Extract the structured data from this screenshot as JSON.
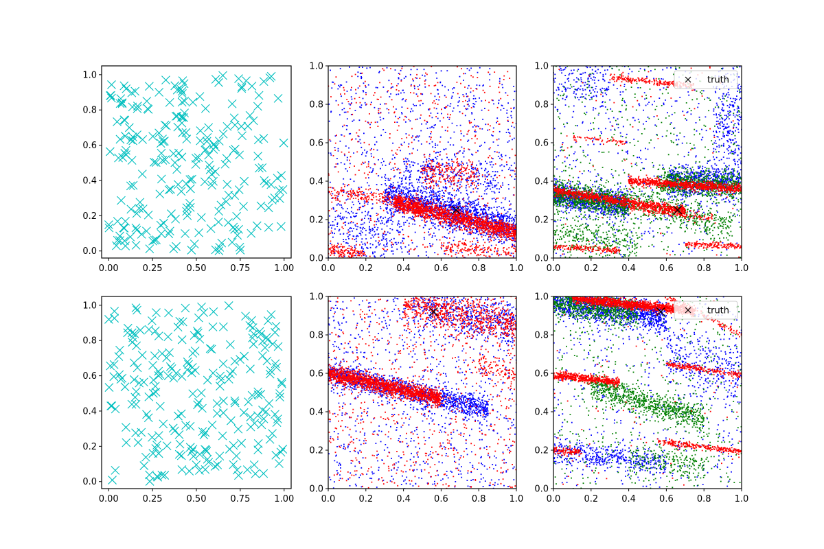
{
  "figure": {
    "layout": "2 rows x 3 columns of scatter plots",
    "colors": {
      "samples": "#00bfbf",
      "red": "#ff0000",
      "blue": "#0000ff",
      "green": "#008000",
      "truth": "#000000"
    }
  },
  "chart_data": [
    {
      "panel": "row1-col1",
      "type": "scatter",
      "title": "",
      "xlabel": "",
      "ylabel": "",
      "xlim": [
        -0.04,
        1.04
      ],
      "ylim": [
        -0.04,
        1.05
      ],
      "xticks": [
        "0.00",
        "0.25",
        "0.50",
        "0.75",
        "1.00"
      ],
      "yticks": [
        "0.0",
        "0.2",
        "0.4",
        "0.6",
        "0.8",
        "1.0"
      ],
      "grid": false,
      "series": [
        {
          "marker": "x",
          "color": "#00bfbf",
          "distribution": {
            "kind": "uniform",
            "n": 240,
            "seed": 11
          }
        }
      ]
    },
    {
      "panel": "row1-col2",
      "type": "scatter",
      "title": "",
      "xlabel": "",
      "ylabel": "",
      "xlim": [
        0,
        1
      ],
      "ylim": [
        0,
        1
      ],
      "xticks": [
        "0.0",
        "0.2",
        "0.4",
        "0.6",
        "0.8",
        "1.0"
      ],
      "yticks": [
        "0.0",
        "0.2",
        "0.4",
        "0.6",
        "0.8",
        "1.0"
      ],
      "grid": false,
      "truth": {
        "x": 0.68,
        "y": 0.25,
        "marker": "x",
        "color": "#000000"
      },
      "series": [
        {
          "color": "#0000ff",
          "seed": 21,
          "background": 900,
          "bands": [
            {
              "x0": 0.3,
              "x1": 1.0,
              "y_at_0": 0.42,
              "slope": -0.27,
              "spread": 0.045,
              "n": 1500
            },
            {
              "x0": 0.0,
              "x1": 0.4,
              "y_at_0": 0.18,
              "slope": -0.2,
              "spread": 0.09,
              "n": 250
            },
            {
              "x0": 0.4,
              "x1": 0.9,
              "y_at_0": 0.52,
              "slope": -0.12,
              "spread": 0.05,
              "n": 250
            }
          ]
        },
        {
          "color": "#ff0000",
          "seed": 22,
          "background": 500,
          "bands": [
            {
              "x0": 0.35,
              "x1": 1.0,
              "y_at_0": 0.38,
              "slope": -0.25,
              "spread": 0.022,
              "n": 1500
            },
            {
              "x0": 0.0,
              "x1": 0.5,
              "y_at_0": 0.35,
              "slope": -0.15,
              "spread": 0.02,
              "n": 200
            },
            {
              "x0": 0.0,
              "x1": 0.2,
              "y_at_0": 0.04,
              "slope": -0.1,
              "spread": 0.02,
              "n": 150
            },
            {
              "x0": 0.6,
              "x1": 1.0,
              "y_at_0": 0.1,
              "slope": -0.07,
              "spread": 0.02,
              "n": 150
            },
            {
              "x0": 0.5,
              "x1": 0.8,
              "y_at_0": 0.47,
              "slope": -0.05,
              "spread": 0.04,
              "n": 200
            }
          ]
        }
      ]
    },
    {
      "panel": "row1-col3",
      "type": "scatter",
      "title": "",
      "xlabel": "",
      "ylabel": "",
      "xlim": [
        0,
        1
      ],
      "ylim": [
        0,
        1
      ],
      "xticks": [
        "0.0",
        "0.2",
        "0.4",
        "0.6",
        "0.8",
        "1.0"
      ],
      "yticks": [
        "0.0",
        "0.2",
        "0.4",
        "0.6",
        "0.8",
        "1.0"
      ],
      "grid": false,
      "legend": {
        "label": "truth",
        "placement": "upper right"
      },
      "truth": {
        "x": 0.66,
        "y": 0.25,
        "marker": "x",
        "color": "#000000"
      },
      "series": [
        {
          "color": "#0000ff",
          "seed": 31,
          "background": 500,
          "bands": [
            {
              "x0": 0.0,
              "x1": 0.4,
              "y_at_0": 0.33,
              "slope": -0.15,
              "spread": 0.035,
              "n": 900
            },
            {
              "x0": 0.6,
              "x1": 1.0,
              "y_at_0": 0.37,
              "slope": 0.03,
              "spread": 0.04,
              "n": 700
            },
            {
              "x0": 0.85,
              "x1": 1.0,
              "y_at_0": 0.75,
              "slope": 0.0,
              "spread": 0.15,
              "n": 250
            },
            {
              "x0": 0.0,
              "x1": 0.3,
              "y_at_0": 0.9,
              "slope": 0.0,
              "spread": 0.06,
              "n": 150
            }
          ]
        },
        {
          "color": "#008000",
          "seed": 32,
          "background": 500,
          "bands": [
            {
              "x0": 0.0,
              "x1": 0.4,
              "y_at_0": 0.33,
              "slope": -0.12,
              "spread": 0.035,
              "n": 800
            },
            {
              "x0": 0.55,
              "x1": 1.0,
              "y_at_0": 0.41,
              "slope": -0.03,
              "spread": 0.035,
              "n": 700
            },
            {
              "x0": 0.4,
              "x1": 0.95,
              "y_at_0": 0.42,
              "slope": -0.28,
              "spread": 0.04,
              "n": 400
            },
            {
              "x0": 0.0,
              "x1": 0.45,
              "y_at_0": 0.12,
              "slope": -0.1,
              "spread": 0.05,
              "n": 300
            }
          ]
        },
        {
          "color": "#ff0000",
          "seed": 33,
          "background": 80,
          "bands": [
            {
              "x0": 0.0,
              "x1": 0.7,
              "y_at_0": 0.35,
              "slope": -0.15,
              "spread": 0.012,
              "n": 900
            },
            {
              "x0": 0.4,
              "x1": 1.0,
              "y_at_0": 0.43,
              "slope": -0.07,
              "spread": 0.012,
              "n": 800
            },
            {
              "x0": 0.0,
              "x1": 0.35,
              "y_at_0": 0.06,
              "slope": -0.06,
              "spread": 0.008,
              "n": 150
            },
            {
              "x0": 0.7,
              "x1": 1.0,
              "y_at_0": 0.11,
              "slope": -0.05,
              "spread": 0.008,
              "n": 150
            },
            {
              "x0": 0.4,
              "x1": 0.85,
              "y_at_0": 0.31,
              "slope": -0.12,
              "spread": 0.01,
              "n": 150
            },
            {
              "x0": 0.3,
              "x1": 0.75,
              "y_at_0": 0.97,
              "slope": -0.1,
              "spread": 0.008,
              "n": 200
            },
            {
              "x0": 0.1,
              "x1": 0.4,
              "y_at_0": 0.64,
              "slope": -0.1,
              "spread": 0.008,
              "n": 60
            }
          ]
        }
      ]
    },
    {
      "panel": "row2-col1",
      "type": "scatter",
      "title": "",
      "xlabel": "",
      "ylabel": "",
      "xlim": [
        -0.04,
        1.04
      ],
      "ylim": [
        -0.04,
        1.05
      ],
      "xticks": [
        "0.00",
        "0.25",
        "0.50",
        "0.75",
        "1.00"
      ],
      "yticks": [
        "0.0",
        "0.2",
        "0.4",
        "0.6",
        "0.8",
        "1.0"
      ],
      "grid": false,
      "series": [
        {
          "marker": "x",
          "color": "#00bfbf",
          "distribution": {
            "kind": "uniform",
            "n": 240,
            "seed": 41
          }
        }
      ]
    },
    {
      "panel": "row2-col2",
      "type": "scatter",
      "title": "",
      "xlabel": "",
      "ylabel": "",
      "xlim": [
        0,
        1
      ],
      "ylim": [
        0,
        1
      ],
      "xticks": [
        "0.0",
        "0.2",
        "0.4",
        "0.6",
        "0.8",
        "1.0"
      ],
      "yticks": [
        "0.0",
        "0.2",
        "0.4",
        "0.6",
        "0.8",
        "1.0"
      ],
      "grid": false,
      "truth": {
        "x": 0.56,
        "y": 0.92,
        "marker": "x",
        "color": "#000000"
      },
      "series": [
        {
          "color": "#0000ff",
          "seed": 51,
          "background": 900,
          "bands": [
            {
              "x0": 0.0,
              "x1": 0.85,
              "y_at_0": 0.6,
              "slope": -0.22,
              "spread": 0.03,
              "n": 1300
            },
            {
              "x0": 0.45,
              "x1": 1.0,
              "y_at_0": 1.05,
              "slope": -0.2,
              "spread": 0.06,
              "n": 500
            }
          ]
        },
        {
          "color": "#ff0000",
          "seed": 52,
          "background": 700,
          "bands": [
            {
              "x0": 0.0,
              "x1": 0.6,
              "y_at_0": 0.6,
              "slope": -0.22,
              "spread": 0.02,
              "n": 1500
            },
            {
              "x0": 0.4,
              "x1": 1.0,
              "y_at_0": 1.05,
              "slope": -0.2,
              "spread": 0.05,
              "n": 700
            },
            {
              "x0": 0.8,
              "x1": 1.0,
              "y_at_0": 0.8,
              "slope": -0.2,
              "spread": 0.03,
              "n": 100
            }
          ]
        }
      ]
    },
    {
      "panel": "row2-col3",
      "type": "scatter",
      "title": "",
      "xlabel": "",
      "ylabel": "",
      "xlim": [
        0,
        1
      ],
      "ylim": [
        0,
        1
      ],
      "xticks": [
        "0.0",
        "0.2",
        "0.4",
        "0.6",
        "0.8",
        "1.0"
      ],
      "yticks": [
        "0.0",
        "0.2",
        "0.4",
        "0.6",
        "0.8",
        "1.0"
      ],
      "grid": false,
      "legend": {
        "label": "truth",
        "placement": "upper right"
      },
      "truth": {
        "x": 0.57,
        "y": 0.92,
        "marker": "x",
        "color": "#000000"
      },
      "series": [
        {
          "color": "#0000ff",
          "seed": 61,
          "background": 500,
          "bands": [
            {
              "x0": 0.0,
              "x1": 0.6,
              "y_at_0": 0.98,
              "slope": -0.15,
              "spread": 0.04,
              "n": 1200
            },
            {
              "x0": 0.0,
              "x1": 0.6,
              "y_at_0": 0.19,
              "slope": -0.1,
              "spread": 0.03,
              "n": 400
            },
            {
              "x0": 0.6,
              "x1": 1.0,
              "y_at_0": 0.8,
              "slope": -0.2,
              "spread": 0.08,
              "n": 300
            }
          ]
        },
        {
          "color": "#008000",
          "seed": 62,
          "background": 500,
          "bands": [
            {
              "x0": 0.0,
              "x1": 0.45,
              "y_at_0": 0.97,
              "slope": -0.12,
              "spread": 0.035,
              "n": 700
            },
            {
              "x0": 0.2,
              "x1": 0.8,
              "y_at_0": 0.6,
              "slope": -0.3,
              "spread": 0.035,
              "n": 800
            },
            {
              "x0": 0.4,
              "x1": 0.8,
              "y_at_0": 0.2,
              "slope": -0.1,
              "spread": 0.04,
              "n": 200
            }
          ]
        },
        {
          "color": "#ff0000",
          "seed": 63,
          "background": 80,
          "bands": [
            {
              "x0": 0.1,
              "x1": 0.75,
              "y_at_0": 1.0,
              "slope": -0.1,
              "spread": 0.012,
              "n": 1300
            },
            {
              "x0": 0.0,
              "x1": 0.35,
              "y_at_0": 0.59,
              "slope": -0.1,
              "spread": 0.01,
              "n": 500
            },
            {
              "x0": 0.0,
              "x1": 0.15,
              "y_at_0": 0.2,
              "slope": -0.1,
              "spread": 0.01,
              "n": 100
            },
            {
              "x0": 0.55,
              "x1": 1.0,
              "y_at_0": 0.32,
              "slope": -0.13,
              "spread": 0.008,
              "n": 250
            },
            {
              "x0": 0.6,
              "x1": 1.0,
              "y_at_0": 0.74,
              "slope": -0.15,
              "spread": 0.008,
              "n": 200
            },
            {
              "x0": 0.6,
              "x1": 1.0,
              "y_at_0": 1.3,
              "slope": -0.5,
              "spread": 0.008,
              "n": 100
            }
          ]
        }
      ]
    }
  ]
}
